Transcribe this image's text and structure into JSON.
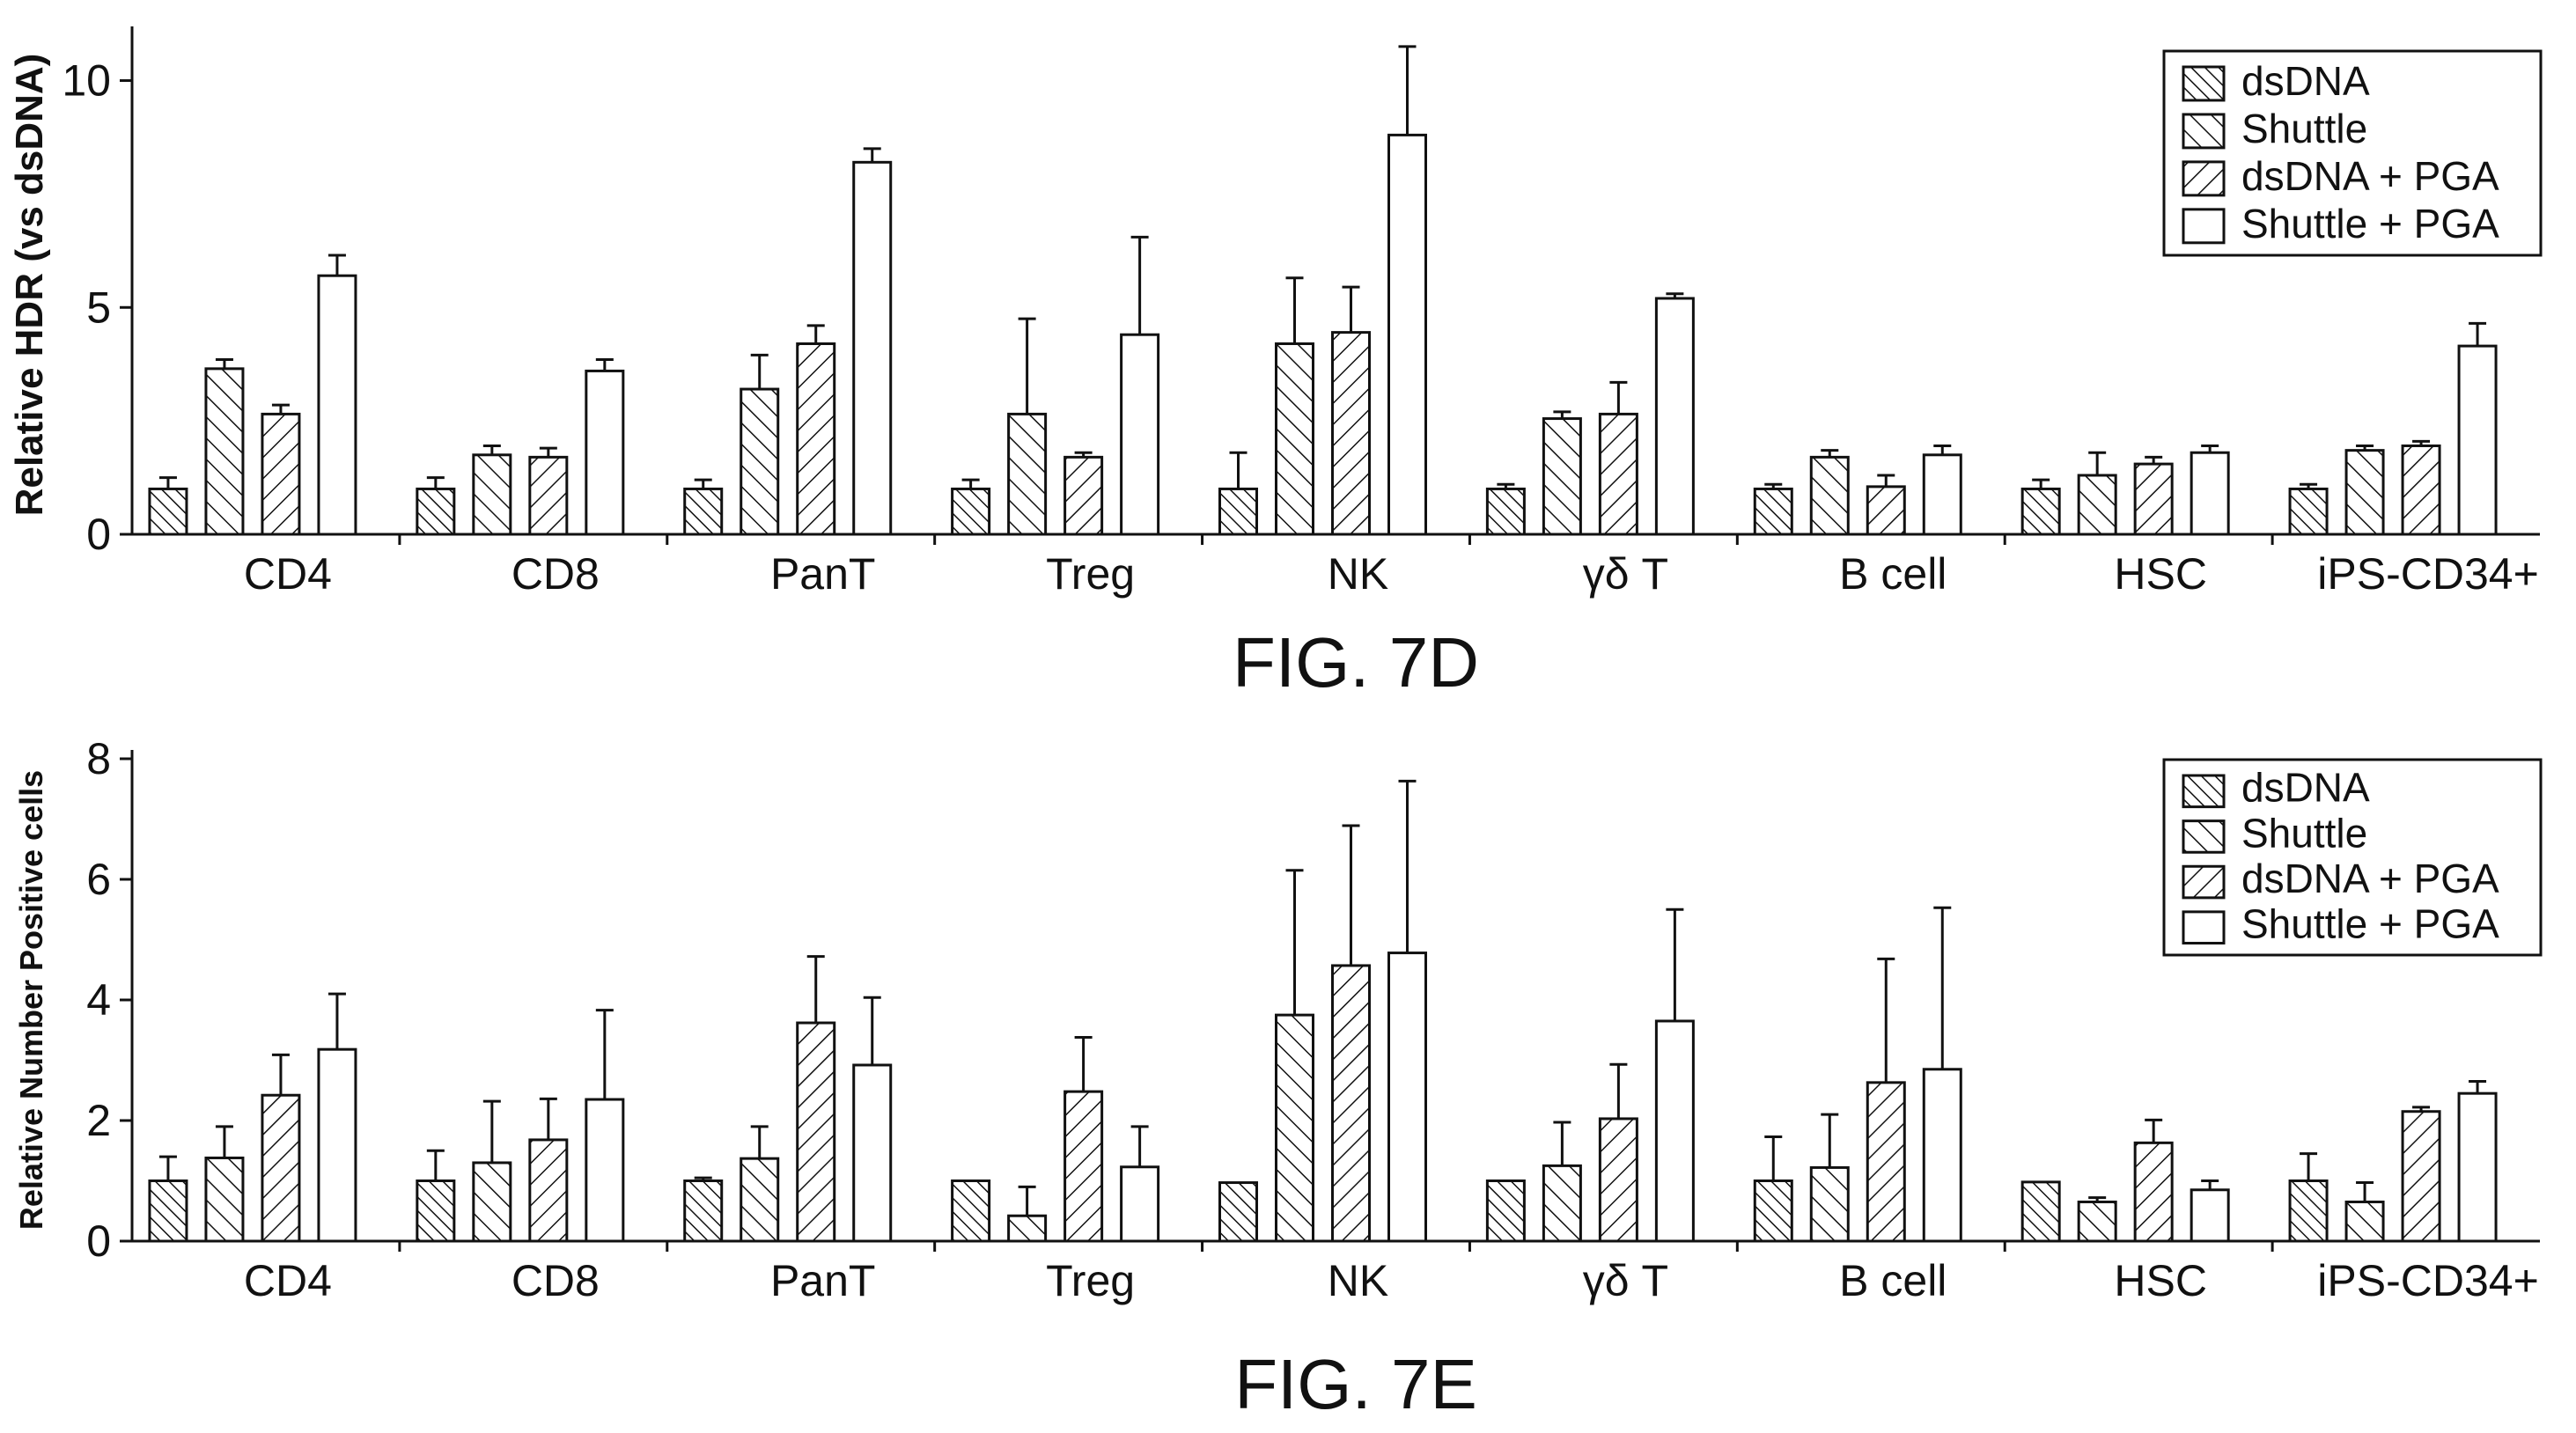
{
  "legend_entries": [
    "dsDNA",
    "Shuttle",
    "dsDNA + PGA",
    "Shuttle + PGA"
  ],
  "chart_data": [
    {
      "type": "bar",
      "caption": "FIG. 7D",
      "title": "",
      "xlabel": "",
      "ylabel": "Relative HDR (vs dsDNA)",
      "ylim": [
        0,
        11
      ],
      "yticks": [
        0,
        5,
        10
      ],
      "grid": false,
      "legend_position": "top-right",
      "error_bars": true,
      "categories": [
        "CD4",
        "CD8",
        "PanT",
        "Treg",
        "NK",
        "γδ T",
        "B cell",
        "HSC",
        "iPS-CD34+"
      ],
      "series": [
        {
          "name": "dsDNA",
          "values": [
            1.0,
            1.0,
            1.0,
            1.0,
            1.0,
            1.0,
            1.0,
            1.0,
            1.0
          ],
          "errors": [
            0.25,
            0.25,
            0.2,
            0.2,
            0.8,
            0.1,
            0.1,
            0.2,
            0.1
          ]
        },
        {
          "name": "Shuttle",
          "values": [
            3.65,
            1.75,
            3.2,
            2.65,
            4.2,
            2.55,
            1.7,
            1.3,
            1.85
          ],
          "errors": [
            0.2,
            0.2,
            0.75,
            2.1,
            1.45,
            0.15,
            0.15,
            0.5,
            0.1
          ]
        },
        {
          "name": "dsDNA + PGA",
          "values": [
            2.65,
            1.7,
            4.2,
            1.7,
            4.45,
            2.65,
            1.05,
            1.55,
            1.95
          ],
          "errors": [
            0.2,
            0.2,
            0.4,
            0.1,
            1.0,
            0.7,
            0.25,
            0.15,
            0.1
          ]
        },
        {
          "name": "Shuttle + PGA",
          "values": [
            5.7,
            3.6,
            8.2,
            4.4,
            8.8,
            5.2,
            1.75,
            1.8,
            4.15
          ],
          "errors": [
            0.45,
            0.25,
            0.3,
            2.15,
            1.95,
            0.1,
            0.2,
            0.15,
            0.5
          ]
        }
      ]
    },
    {
      "type": "bar",
      "caption": "FIG. 7E",
      "title": "",
      "xlabel": "",
      "ylabel": "Relative Number Positive cells",
      "ylim": [
        0,
        8
      ],
      "yticks": [
        0,
        2,
        4,
        6,
        8
      ],
      "grid": false,
      "legend_position": "top-right",
      "error_bars": true,
      "categories": [
        "CD4",
        "CD8",
        "PanT",
        "Treg",
        "NK",
        "γδ T",
        "B cell",
        "HSC",
        "iPS-CD34+"
      ],
      "series": [
        {
          "name": "dsDNA",
          "values": [
            1.0,
            1.0,
            1.0,
            1.0,
            0.97,
            1.0,
            1.0,
            0.98,
            1.0
          ],
          "errors": [
            0.4,
            0.5,
            0.05,
            0,
            0,
            0,
            0.73,
            0,
            0.45
          ]
        },
        {
          "name": "Shuttle",
          "values": [
            1.38,
            1.3,
            1.37,
            0.42,
            3.75,
            1.25,
            1.22,
            0.65,
            0.65
          ],
          "errors": [
            0.52,
            1.02,
            0.53,
            0.48,
            2.4,
            0.72,
            0.88,
            0.07,
            0.32
          ]
        },
        {
          "name": "dsDNA + PGA",
          "values": [
            2.42,
            1.68,
            3.62,
            2.48,
            4.57,
            2.03,
            2.63,
            1.63,
            2.15
          ],
          "errors": [
            0.67,
            0.68,
            1.1,
            0.9,
            2.32,
            0.9,
            2.05,
            0.38,
            0.07
          ]
        },
        {
          "name": "Shuttle + PGA",
          "values": [
            3.18,
            2.35,
            2.92,
            1.23,
            4.78,
            3.65,
            2.85,
            0.85,
            2.45
          ],
          "errors": [
            0.92,
            1.48,
            1.12,
            0.67,
            2.85,
            1.85,
            2.68,
            0.15,
            0.2
          ]
        }
      ]
    }
  ]
}
